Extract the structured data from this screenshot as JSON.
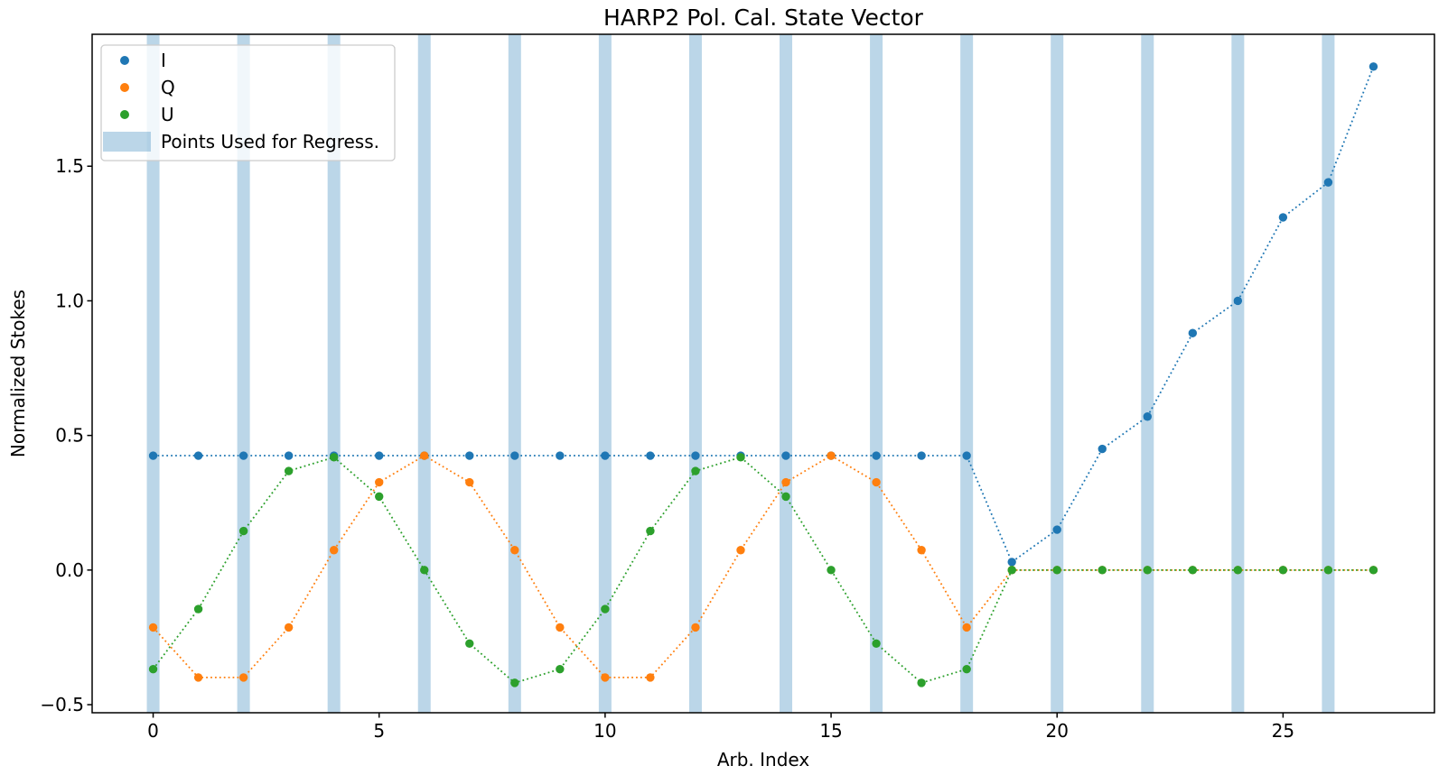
{
  "chart_data": {
    "type": "scatter",
    "title": "HARP2 Pol. Cal. State Vector",
    "xlabel": "Arb. Index",
    "ylabel": "Normalized Stokes",
    "xlim": [
      -1.35,
      28.35
    ],
    "ylim": [
      -0.53,
      1.99
    ],
    "grid": false,
    "x_ticks": [
      0,
      5,
      10,
      15,
      20,
      25
    ],
    "x_tick_labels": [
      "0",
      "5",
      "10",
      "15",
      "20",
      "25"
    ],
    "y_ticks": [
      -0.5,
      0.0,
      0.5,
      1.0,
      1.5
    ],
    "y_tick_labels": [
      "−0.5",
      "0.0",
      "0.5",
      "1.0",
      "1.5"
    ],
    "legend": {
      "position": "upper left"
    },
    "x": [
      0,
      1,
      2,
      3,
      4,
      5,
      6,
      7,
      8,
      9,
      10,
      11,
      12,
      13,
      14,
      15,
      16,
      17,
      18,
      19,
      20,
      21,
      22,
      23,
      24,
      25,
      26,
      27
    ],
    "series": [
      {
        "name": "I",
        "color": "#1f77b4",
        "linestyle": "dotted",
        "marker": "circle",
        "values": [
          0.425,
          0.425,
          0.425,
          0.425,
          0.425,
          0.425,
          0.425,
          0.425,
          0.425,
          0.425,
          0.425,
          0.425,
          0.425,
          0.425,
          0.425,
          0.425,
          0.425,
          0.425,
          0.425,
          0.03,
          0.15,
          0.45,
          0.57,
          0.88,
          1.0,
          1.31,
          1.44,
          1.87
        ]
      },
      {
        "name": "Q",
        "color": "#ff7f0e",
        "linestyle": "dotted",
        "marker": "circle",
        "values": [
          -0.213,
          -0.399,
          -0.399,
          -0.213,
          0.074,
          0.326,
          0.425,
          0.326,
          0.074,
          -0.213,
          -0.399,
          -0.399,
          -0.213,
          0.074,
          0.326,
          0.425,
          0.326,
          0.074,
          -0.213,
          0.0,
          0.0,
          0.0,
          0.0,
          0.0,
          0.0,
          0.0,
          0.0,
          0.0
        ]
      },
      {
        "name": "U",
        "color": "#2ca02c",
        "linestyle": "dotted",
        "marker": "circle",
        "values": [
          -0.368,
          -0.145,
          0.145,
          0.368,
          0.419,
          0.273,
          0.0,
          -0.273,
          -0.419,
          -0.368,
          -0.145,
          0.145,
          0.368,
          0.419,
          0.273,
          0.0,
          -0.273,
          -0.419,
          -0.368,
          0.0,
          0.0,
          0.0,
          0.0,
          0.0,
          0.0,
          0.0,
          0.0,
          0.0
        ]
      }
    ],
    "regression_bands": {
      "label": "Points Used for Regress.",
      "color": "rgba(31,119,180,0.3)",
      "x_centers": [
        0,
        2,
        4,
        6,
        8,
        10,
        12,
        14,
        16,
        18,
        20,
        22,
        24,
        26
      ],
      "half_width": 0.14
    }
  }
}
